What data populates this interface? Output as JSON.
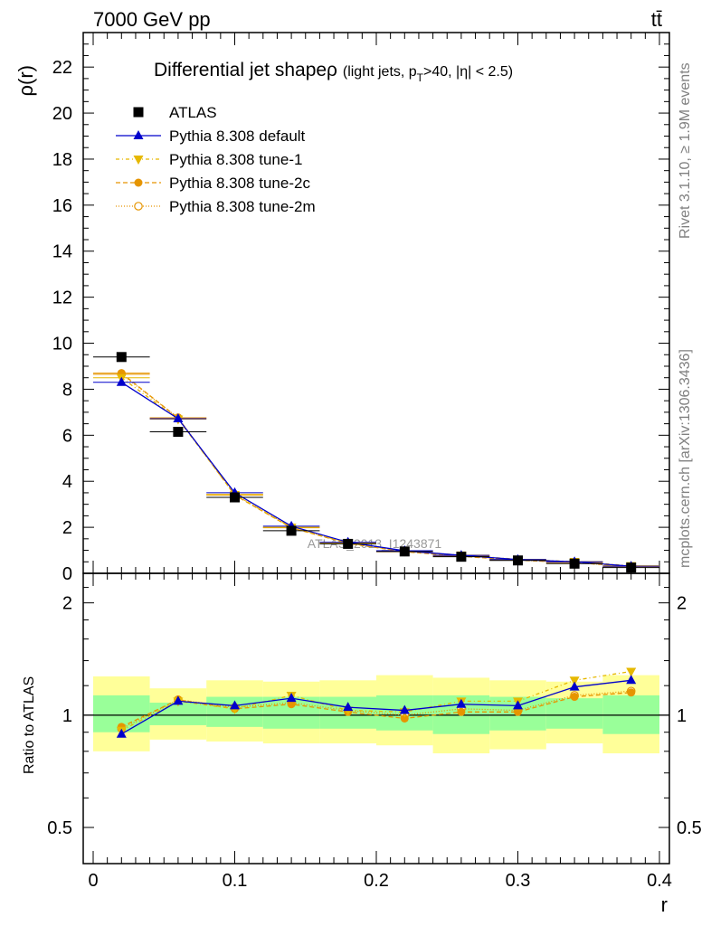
{
  "header": {
    "left": "7000 GeV pp",
    "right": "tt̄"
  },
  "side_text": {
    "rivet": "Rivet 3.1.10, ≥ 1.9M events",
    "mcplots": "mcplots.cern.ch [arXiv:1306.3436]"
  },
  "chart_data": [
    {
      "type": "line",
      "title": "Differential jet shapeρ (light jets, p_T>40, |η| < 2.5)",
      "title_main": "Differential jet shapeρ",
      "title_sub_a": "(light jets, p",
      "title_sub_b": "T",
      "title_sub_c": ">40, |η| < 2.5)",
      "ylabel": "ρ(r)",
      "xlabel": "r",
      "watermark": "ATLAS_2013_I1243871",
      "xlim": [
        0,
        0.4
      ],
      "ylim": [
        0,
        23.5
      ],
      "yticks": [
        "0",
        "2",
        "4",
        "6",
        "8",
        "10",
        "12",
        "14",
        "16",
        "18",
        "20",
        "22"
      ],
      "legend_position": "top-left",
      "x": [
        0.02,
        0.06,
        0.1,
        0.14,
        0.18,
        0.22,
        0.26,
        0.3,
        0.34,
        0.38
      ],
      "series": [
        {
          "name": "ATLAS",
          "color": "#000000",
          "marker": "square",
          "values": [
            9.4,
            6.15,
            3.3,
            1.85,
            1.28,
            0.95,
            0.72,
            0.56,
            0.42,
            0.25
          ]
        },
        {
          "name": "Pythia 8.308 default",
          "color": "#0000cc",
          "marker": "triangle-up",
          "values": [
            8.3,
            6.72,
            3.5,
            2.05,
            1.35,
            0.98,
            0.78,
            0.6,
            0.5,
            0.31
          ]
        },
        {
          "name": "Pythia 8.308 tune-1",
          "color": "#e6b800",
          "marker": "triangle-down",
          "values": [
            8.5,
            6.7,
            3.42,
            2.0,
            1.32,
            0.97,
            0.79,
            0.61,
            0.51,
            0.33
          ]
        },
        {
          "name": "Pythia 8.308 tune-2c",
          "color": "#e69500",
          "marker": "circle",
          "values": [
            8.7,
            6.75,
            3.4,
            1.98,
            1.3,
            0.94,
            0.74,
            0.57,
            0.47,
            0.29
          ]
        },
        {
          "name": "Pythia 8.308 tune-2m",
          "color": "#e69500",
          "marker": "circle-open",
          "values": [
            8.65,
            6.76,
            3.43,
            2.0,
            1.32,
            0.95,
            0.76,
            0.58,
            0.47,
            0.29
          ]
        }
      ]
    },
    {
      "type": "line",
      "ylabel": "Ratio to ATLAS",
      "xlabel": "r",
      "xlim": [
        0,
        0.4
      ],
      "ylim": [
        0.4,
        2.4
      ],
      "yscale": "log",
      "xticks": [
        "0",
        "0.1",
        "0.2",
        "0.3",
        "0.4"
      ],
      "yticks": [
        "0.5",
        "1",
        "2"
      ],
      "x": [
        0.02,
        0.06,
        0.1,
        0.14,
        0.18,
        0.22,
        0.26,
        0.3,
        0.34,
        0.38
      ],
      "band_stat": {
        "color": "#99ff99",
        "lo": [
          0.9,
          0.94,
          0.93,
          0.92,
          0.92,
          0.91,
          0.89,
          0.91,
          0.92,
          0.89
        ],
        "hi": [
          1.13,
          1.08,
          1.12,
          1.12,
          1.12,
          1.13,
          1.13,
          1.12,
          1.11,
          1.13
        ]
      },
      "band_total": {
        "color": "#ffff99",
        "lo": [
          0.8,
          0.86,
          0.85,
          0.84,
          0.84,
          0.83,
          0.79,
          0.81,
          0.84,
          0.79
        ],
        "hi": [
          1.27,
          1.18,
          1.24,
          1.23,
          1.24,
          1.28,
          1.26,
          1.24,
          1.23,
          1.28
        ]
      },
      "series": [
        {
          "name": "Pythia 8.308 default",
          "color": "#0000cc",
          "marker": "triangle-up",
          "values": [
            0.89,
            1.09,
            1.06,
            1.11,
            1.05,
            1.03,
            1.07,
            1.06,
            1.19,
            1.24
          ]
        },
        {
          "name": "Pythia 8.308 tune-1",
          "color": "#e6b800",
          "marker": "triangle-down",
          "values": [
            0.91,
            1.09,
            1.04,
            1.13,
            1.03,
            1.02,
            1.09,
            1.09,
            1.24,
            1.31
          ]
        },
        {
          "name": "Pythia 8.308 tune-2c",
          "color": "#e69500",
          "marker": "circle",
          "values": [
            0.93,
            1.1,
            1.04,
            1.07,
            1.02,
            0.98,
            1.02,
            1.02,
            1.12,
            1.15
          ]
        },
        {
          "name": "Pythia 8.308 tune-2m",
          "color": "#e69500",
          "marker": "circle-open",
          "values": [
            0.92,
            1.1,
            1.05,
            1.08,
            1.03,
            1.0,
            1.04,
            1.03,
            1.13,
            1.16
          ]
        }
      ]
    }
  ]
}
